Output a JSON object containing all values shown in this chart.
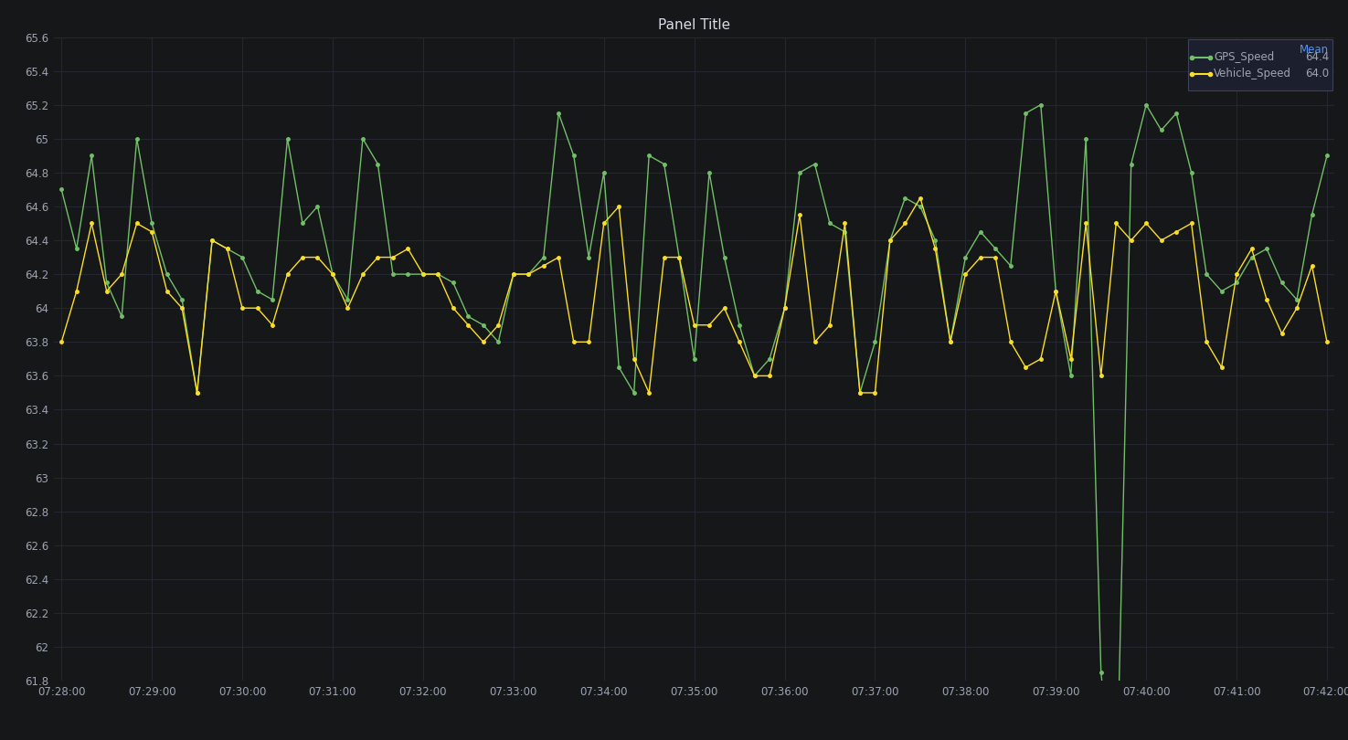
{
  "title": "Panel Title",
  "background_color": "#161719",
  "plot_bg_color": "#161719",
  "grid_color": "#272b36",
  "text_color": "#9da5b4",
  "title_color": "#d8dce9",
  "gps_color": "#73bf69",
  "vehicle_color": "#fade2a",
  "mean_header_color": "#5794f2",
  "gps_mean": 64.4,
  "vehicle_mean": 64.0,
  "legend_label_gps": "GPS_Speed",
  "legend_label_vehicle": "Vehicle_Speed",
  "legend_mean_label": "Mean",
  "ylim_min": 61.8,
  "ylim_max": 65.6,
  "ytick_step": 0.2,
  "xtick_labels": [
    "07:28:00",
    "07:29:00",
    "07:30:00",
    "07:31:00",
    "07:32:00",
    "07:33:00",
    "07:34:00",
    "07:35:00",
    "07:36:00",
    "07:37:00",
    "07:38:00",
    "07:39:00",
    "07:40:00",
    "07:41:00",
    "07:42:00"
  ],
  "gps_y": [
    64.7,
    64.35,
    64.9,
    64.15,
    63.95,
    65.0,
    64.5,
    64.2,
    64.05,
    63.5,
    64.4,
    64.35,
    64.3,
    64.1,
    64.05,
    65.0,
    64.5,
    64.6,
    64.2,
    64.05,
    65.0,
    64.85,
    64.2,
    64.2,
    64.2,
    64.2,
    64.15,
    63.95,
    63.9,
    63.8,
    64.2,
    64.2,
    64.3,
    65.15,
    64.9,
    64.3,
    64.8,
    63.65,
    63.5,
    64.9,
    64.85,
    64.3,
    63.7,
    64.8,
    64.3,
    63.9,
    63.6,
    63.7,
    64.0,
    64.8,
    64.85,
    64.5,
    64.45,
    63.5,
    63.8,
    64.4,
    64.65,
    64.6,
    64.4,
    63.8,
    64.3,
    64.45,
    64.35,
    64.25,
    65.15,
    65.2,
    64.1,
    63.6,
    65.0,
    61.85,
    61.0,
    64.85,
    65.2,
    65.05,
    65.15,
    64.8,
    64.2,
    64.1,
    64.15,
    64.3,
    64.35,
    64.15,
    64.05,
    64.55,
    64.9
  ],
  "vehicle_y": [
    63.8,
    64.1,
    64.5,
    64.1,
    64.2,
    64.5,
    64.45,
    64.1,
    64.0,
    63.5,
    64.4,
    64.35,
    64.0,
    64.0,
    63.9,
    64.2,
    64.3,
    64.3,
    64.2,
    64.0,
    64.2,
    64.3,
    64.3,
    64.35,
    64.2,
    64.2,
    64.0,
    63.9,
    63.8,
    63.9,
    64.2,
    64.2,
    64.25,
    64.3,
    63.8,
    63.8,
    64.5,
    64.6,
    63.7,
    63.5,
    64.3,
    64.3,
    63.9,
    63.9,
    64.0,
    63.8,
    63.6,
    63.6,
    64.0,
    64.55,
    63.8,
    63.9,
    64.5,
    63.5,
    63.5,
    64.4,
    64.5,
    64.65,
    64.35,
    63.8,
    64.2,
    64.3,
    64.3,
    63.8,
    63.65,
    63.7,
    64.1,
    63.7,
    64.5,
    63.6,
    64.5,
    64.4,
    64.5,
    64.4,
    64.45,
    64.5,
    63.8,
    63.65,
    64.2,
    64.35,
    64.05,
    63.85,
    64.0,
    64.25,
    63.8
  ],
  "legend_bg": "#1c1f2e",
  "legend_border": "#3d4159"
}
